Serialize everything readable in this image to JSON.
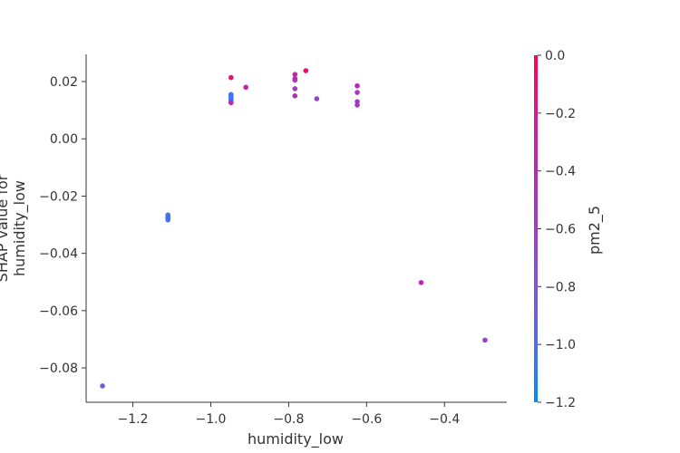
{
  "chart_data": {
    "type": "scatter",
    "xlabel": "humidity_low",
    "ylabel_lines": [
      "SHAP value for",
      "humidity_low"
    ],
    "xlim": [
      -1.32,
      -0.24
    ],
    "ylim": [
      -0.092,
      0.0295
    ],
    "xticks": [
      -1.2,
      -1.0,
      -0.8,
      -0.6,
      -0.4
    ],
    "xtick_labels": [
      "−1.2",
      "−1.0",
      "−0.8",
      "−0.6",
      "−0.4"
    ],
    "yticks": [
      0.02,
      0.0,
      -0.02,
      -0.04,
      -0.06,
      -0.08
    ],
    "ytick_labels": [
      "0.02",
      "0.00",
      "−0.02",
      "−0.04",
      "−0.06",
      "−0.08"
    ],
    "colorbar": {
      "label": "pm2_5",
      "range": [
        -1.2,
        0.0
      ],
      "ticks": [
        0.0,
        -0.2,
        -0.4,
        -0.6,
        -0.8,
        -1.0,
        -1.2
      ],
      "tick_labels": [
        "0.0",
        "−0.2",
        "−0.4",
        "−0.6",
        "−0.8",
        "−1.0",
        "−1.2"
      ],
      "colormap": [
        "#008afb",
        "#4f6cf2",
        "#7c55de",
        "#9b3ec9",
        "#b82aae",
        "#d61b8e",
        "#ff0052"
      ]
    },
    "points": [
      {
        "x": -1.278,
        "y": -0.0863,
        "c": -0.88
      },
      {
        "x": -1.11,
        "y": -0.0266,
        "c": -1.02
      },
      {
        "x": -1.11,
        "y": -0.0272,
        "c": -1.03
      },
      {
        "x": -1.11,
        "y": -0.0278,
        "c": -1.02
      },
      {
        "x": -1.11,
        "y": -0.0283,
        "c": -1.04
      },
      {
        "x": -0.948,
        "y": 0.0214,
        "c": -0.12
      },
      {
        "x": -0.948,
        "y": 0.0155,
        "c": -1.02
      },
      {
        "x": -0.948,
        "y": 0.015,
        "c": -1.03
      },
      {
        "x": -0.948,
        "y": 0.0145,
        "c": -1.01
      },
      {
        "x": -0.948,
        "y": 0.0139,
        "c": -1.04
      },
      {
        "x": -0.948,
        "y": 0.0133,
        "c": -1.02
      },
      {
        "x": -0.948,
        "y": 0.0126,
        "c": -0.35
      },
      {
        "x": -0.91,
        "y": 0.018,
        "c": -0.3
      },
      {
        "x": -0.784,
        "y": 0.0225,
        "c": -0.3
      },
      {
        "x": -0.784,
        "y": 0.021,
        "c": -0.4
      },
      {
        "x": -0.784,
        "y": 0.0205,
        "c": -0.45
      },
      {
        "x": -0.784,
        "y": 0.0175,
        "c": -0.5
      },
      {
        "x": -0.784,
        "y": 0.015,
        "c": -0.42
      },
      {
        "x": -0.756,
        "y": 0.0238,
        "c": -0.08
      },
      {
        "x": -0.728,
        "y": 0.014,
        "c": -0.62
      },
      {
        "x": -0.624,
        "y": 0.0185,
        "c": -0.38
      },
      {
        "x": -0.624,
        "y": 0.0162,
        "c": -0.55
      },
      {
        "x": -0.624,
        "y": 0.013,
        "c": -0.6
      },
      {
        "x": -0.624,
        "y": 0.0118,
        "c": -0.5
      },
      {
        "x": -0.46,
        "y": -0.0502,
        "c": -0.35
      },
      {
        "x": -0.296,
        "y": -0.0703,
        "c": -0.62
      }
    ]
  }
}
